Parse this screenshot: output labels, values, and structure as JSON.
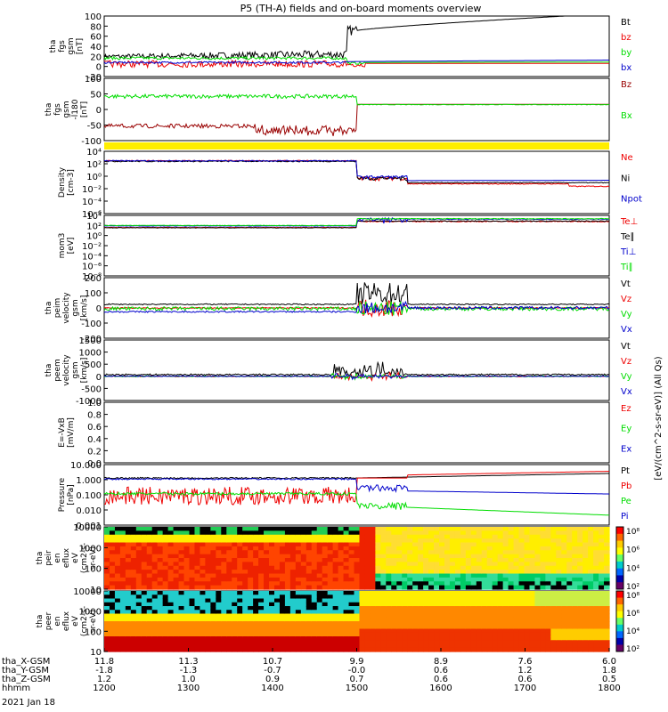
{
  "title": "P5 (TH-A) fields and on-board moments overview",
  "colors": {
    "black": "#000000",
    "red": "#ee0000",
    "green": "#00dd00",
    "blue": "#0000cc",
    "darkred": "#990000",
    "yellow": "#ffee00"
  },
  "chart_data": [
    {
      "id": "fgs",
      "type": "line",
      "ylabel": [
        "tha",
        "fgs",
        "gsm",
        "[nT]"
      ],
      "yticks": [
        "100",
        "80",
        "60",
        "40",
        "20",
        "0",
        "-20"
      ],
      "ylim": [
        -25,
        100
      ],
      "series": [
        {
          "name": "Bt",
          "color": "black"
        },
        {
          "name": "bz",
          "color": "red"
        },
        {
          "name": "by",
          "color": "green"
        },
        {
          "name": "bx",
          "color": "blue"
        }
      ]
    },
    {
      "id": "fgsmag",
      "type": "line",
      "ylabel": [
        "tha",
        "fgs",
        "gsm",
        "-l180",
        "[nT]"
      ],
      "yticks": [
        "100",
        "50",
        "0",
        "-50",
        "-100"
      ],
      "ylim": [
        -125,
        100
      ],
      "series": [
        {
          "name": "Bz",
          "color": "darkred"
        },
        {
          "name": "Bx",
          "color": "green"
        }
      ]
    },
    {
      "id": "density",
      "type": "line",
      "ylabel": [
        "Density",
        "[cm-3]"
      ],
      "yticks": [
        "10⁴",
        "10²",
        "10⁰",
        "10⁻²",
        "10⁻⁴",
        "10⁻⁶"
      ],
      "ylog": true,
      "ylim": [
        1e-06,
        10000.0
      ],
      "series": [
        {
          "name": "Ne",
          "color": "red"
        },
        {
          "name": "Ni",
          "color": "black"
        },
        {
          "name": "Npot",
          "color": "blue"
        }
      ]
    },
    {
      "id": "temp",
      "type": "line",
      "ylabel": [
        "mom3",
        "[eV]"
      ],
      "yticks": [
        "10⁴",
        "10²",
        "10⁰",
        "10⁻²",
        "10⁻⁴",
        "10⁻⁶",
        "10⁻⁸"
      ],
      "ylog": true,
      "ylim": [
        1e-08,
        10000.0
      ],
      "series": [
        {
          "name": "Te⊥",
          "color": "red"
        },
        {
          "name": "Te∥",
          "color": "black"
        },
        {
          "name": "Ti⊥",
          "color": "blue"
        },
        {
          "name": "Ti∥",
          "color": "green"
        }
      ]
    },
    {
      "id": "peim",
      "type": "line",
      "ylabel": [
        "tha",
        "peim",
        "velocity",
        "gsm",
        "[km/s]"
      ],
      "yticks": [
        "200",
        "100",
        "0",
        "-100",
        "-200"
      ],
      "ylim": [
        -200,
        200
      ],
      "series": [
        {
          "name": "Vt",
          "color": "black"
        },
        {
          "name": "Vz",
          "color": "red"
        },
        {
          "name": "Vy",
          "color": "green"
        },
        {
          "name": "Vx",
          "color": "blue"
        }
      ]
    },
    {
      "id": "peem",
      "type": "line",
      "ylabel": [
        "tha",
        "peem",
        "velocity",
        "gsm",
        "[km/s]"
      ],
      "yticks": [
        "1500",
        "1000",
        "500",
        "0",
        "-500",
        "-1000"
      ],
      "ylim": [
        -1000,
        1500
      ],
      "series": [
        {
          "name": "Vt",
          "color": "black"
        },
        {
          "name": "Vz",
          "color": "red"
        },
        {
          "name": "Vy",
          "color": "green"
        },
        {
          "name": "Vx",
          "color": "blue"
        }
      ]
    },
    {
      "id": "efield",
      "type": "line",
      "ylabel": [
        "E=-VxB",
        "[mV/m]"
      ],
      "yticks": [
        "1.0",
        "0.8",
        "0.6",
        "0.4",
        "0.2",
        "0.0"
      ],
      "ylim": [
        0,
        1
      ],
      "series": [
        {
          "name": "Ez",
          "color": "red"
        },
        {
          "name": "Ey",
          "color": "green"
        },
        {
          "name": "Ex",
          "color": "blue"
        }
      ]
    },
    {
      "id": "pressure",
      "type": "line",
      "ylabel": [
        "Pressure",
        "[nPa]"
      ],
      "yticks": [
        "10.000",
        "1.000",
        "0.100",
        "0.010",
        "0.001"
      ],
      "ylog": true,
      "ylim": [
        0.001,
        10
      ],
      "series": [
        {
          "name": "Pt",
          "color": "black"
        },
        {
          "name": "Pb",
          "color": "red"
        },
        {
          "name": "Pe",
          "color": "green"
        },
        {
          "name": "Pi",
          "color": "blue"
        }
      ]
    },
    {
      "id": "peif",
      "type": "heatmap",
      "ylabel": [
        "tha",
        "peir",
        "en",
        "eflux",
        "eV",
        "(cm2-s-",
        "sr-eV)"
      ],
      "yticks": [
        "10000",
        "1000",
        "100",
        "10"
      ],
      "ylog": true,
      "ylim": [
        5,
        25000
      ]
    },
    {
      "id": "peef",
      "type": "heatmap",
      "ylabel": [
        "tha",
        "peer",
        "en",
        "eflux",
        "eV",
        "(cm2-s-",
        "sr-eV)"
      ],
      "yticks": [
        "10000",
        "1000",
        "100",
        "10"
      ],
      "ylog": true,
      "ylim": [
        5,
        25000
      ]
    }
  ],
  "colorbar": {
    "label": "[eV/(cm^2-s-sr-eV)] (All Qs)",
    "ticks": [
      "10⁸",
      "10⁶",
      "10⁴",
      "10²"
    ]
  },
  "xaxis": {
    "rows": [
      {
        "label": "tha_X-GSM",
        "values": [
          "11.8",
          "11.3",
          "10.7",
          "9.9",
          "8.9",
          "7.6",
          "6.0"
        ]
      },
      {
        "label": "tha_Y-GSM",
        "values": [
          "-1.8",
          "-1.3",
          "-0.7",
          "-0.0",
          "0.6",
          "1.2",
          "1.8"
        ]
      },
      {
        "label": "tha_Z-GSM",
        "values": [
          "1.2",
          "1.0",
          "0.9",
          "0.7",
          "0.6",
          "0.6",
          "0.5"
        ]
      },
      {
        "label": "hhmm",
        "values": [
          "1200",
          "1300",
          "1400",
          "1500",
          "1600",
          "1700",
          "1800"
        ]
      }
    ],
    "date": "2021 Jan 18"
  }
}
